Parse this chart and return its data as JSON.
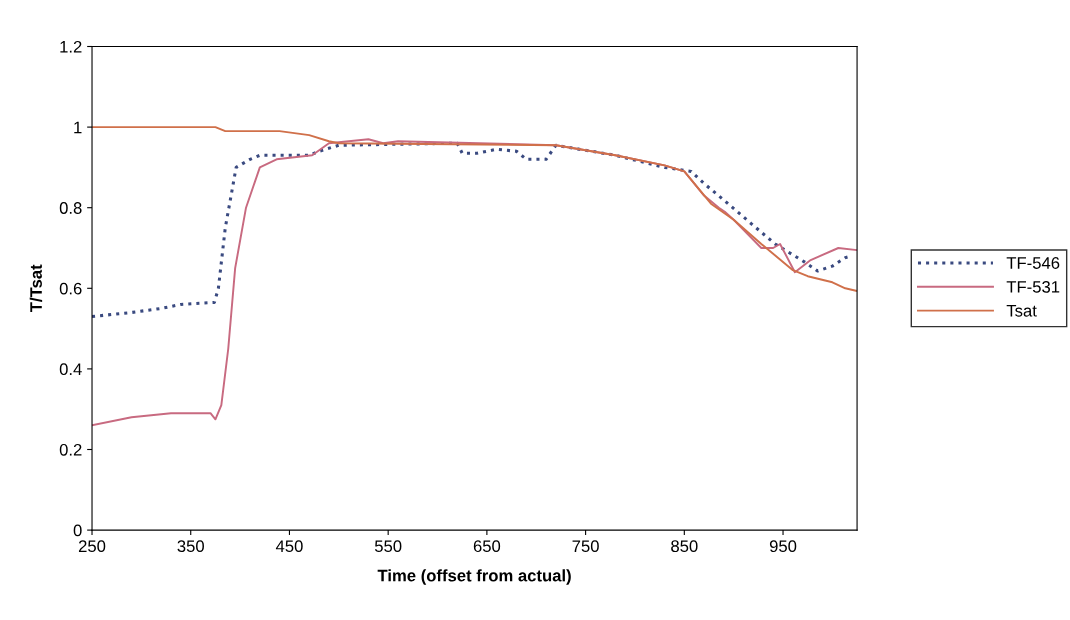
{
  "chart_data": {
    "type": "line",
    "xlabel": "Time (offset from actual)",
    "ylabel": "T/Tsat",
    "xlim": [
      250,
      1025
    ],
    "xticks": [
      250,
      350,
      450,
      550,
      650,
      750,
      850,
      950
    ],
    "ylim": [
      0,
      1.2
    ],
    "yticks": [
      0,
      0.2,
      0.4,
      0.6,
      0.8,
      1,
      1.2
    ],
    "grid": false,
    "legend": "right",
    "series": [
      {
        "name": "TF-546",
        "color": "#3a4a80",
        "line_style": "dotted",
        "x": [
          250,
          290,
          320,
          340,
          374,
          378,
          385,
          396,
          410,
          420,
          470,
          480,
          500,
          620,
          625,
          640,
          660,
          680,
          690,
          710,
          720,
          780,
          830,
          857,
          870,
          891,
          918,
          942,
          972,
          985,
          1000,
          1013,
          1019
        ],
        "values": [
          0.53,
          0.54,
          0.55,
          0.56,
          0.565,
          0.6,
          0.75,
          0.9,
          0.92,
          0.93,
          0.93,
          0.94,
          0.955,
          0.96,
          0.935,
          0.935,
          0.945,
          0.94,
          0.92,
          0.92,
          0.955,
          0.93,
          0.9,
          0.89,
          0.86,
          0.817,
          0.76,
          0.71,
          0.665,
          0.643,
          0.655,
          0.676,
          0.68
        ]
      },
      {
        "name": "TF-531",
        "color": "#c86a80",
        "line_style": "solid",
        "x": [
          250,
          290,
          330,
          370,
          375,
          381,
          388,
          395,
          406,
          420,
          437,
          473,
          490,
          530,
          545,
          560,
          720,
          780,
          830,
          850,
          870,
          885,
          891,
          900,
          928,
          940,
          947,
          962,
          978,
          1006,
          1024
        ],
        "values": [
          0.26,
          0.28,
          0.29,
          0.29,
          0.275,
          0.31,
          0.45,
          0.65,
          0.8,
          0.9,
          0.92,
          0.93,
          0.96,
          0.97,
          0.96,
          0.965,
          0.955,
          0.93,
          0.905,
          0.89,
          0.83,
          0.8,
          0.79,
          0.77,
          0.7,
          0.7,
          0.71,
          0.64,
          0.67,
          0.7,
          0.695
        ]
      },
      {
        "name": "Tsat",
        "color": "#d0704a",
        "line_style": "solid",
        "x": [
          250,
          375,
          385,
          440,
          455,
          470,
          490,
          500,
          720,
          780,
          830,
          850,
          877,
          900,
          928,
          960,
          975,
          1000,
          1013,
          1024
        ],
        "values": [
          1.0,
          1.0,
          0.99,
          0.99,
          0.985,
          0.98,
          0.965,
          0.96,
          0.955,
          0.93,
          0.905,
          0.89,
          0.81,
          0.77,
          0.71,
          0.645,
          0.63,
          0.615,
          0.6,
          0.594
        ]
      }
    ]
  }
}
